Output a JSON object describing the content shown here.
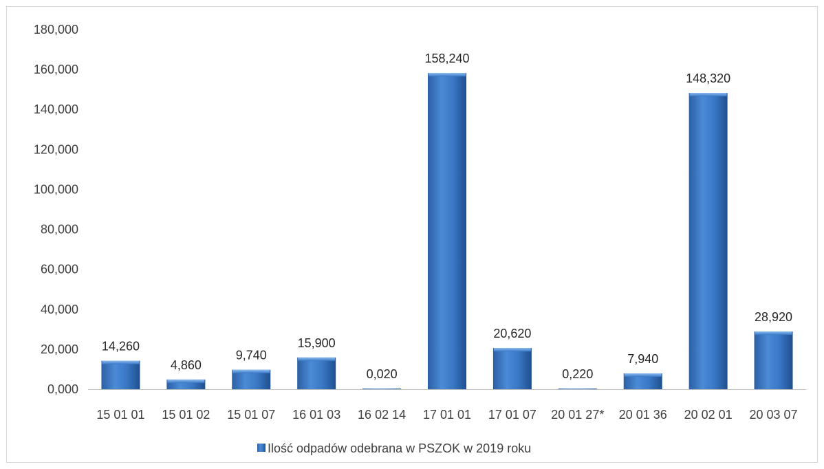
{
  "chart_data": {
    "type": "bar",
    "categories": [
      "15 01 01",
      "15 01 02",
      "15 01 07",
      "16 01 03",
      "16 02 14",
      "17 01 01",
      "17 01 07",
      "20 01 27*",
      "20 01 36",
      "20 02 01",
      "20 03 07"
    ],
    "series": [
      {
        "name": "Ilość odpadów odebrana w PSZOK w 2019 roku",
        "values": [
          14.26,
          4.86,
          9.74,
          15.9,
          0.02,
          158.24,
          20.62,
          0.22,
          7.94,
          148.32,
          28.92
        ],
        "labels": [
          "14,260",
          "4,860",
          "9,740",
          "15,900",
          "0,020",
          "158,240",
          "20,620",
          "0,220",
          "7,940",
          "148,320",
          "28,920"
        ]
      }
    ],
    "ylim": [
      0,
      180
    ],
    "yticks": [
      0,
      20,
      40,
      60,
      80,
      100,
      120,
      140,
      160,
      180
    ],
    "ytick_labels": [
      "0,000",
      "20,000",
      "40,000",
      "60,000",
      "80,000",
      "100,000",
      "120,000",
      "140,000",
      "160,000",
      "180,000"
    ],
    "grid": false,
    "legend_position": "bottom",
    "colors": {
      "bar": "#3a78c6",
      "bar_light": "#5b9be0",
      "bar_dark": "#1f4f8f",
      "axis": "#bfbfbf",
      "frame": "#d9d9d9"
    }
  }
}
